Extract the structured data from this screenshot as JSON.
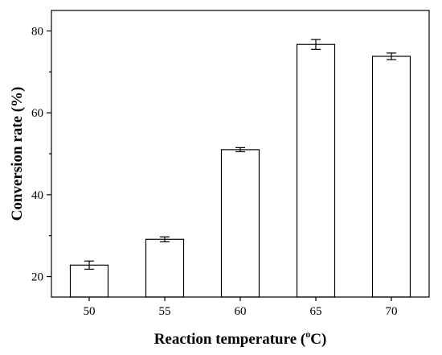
{
  "chart_data": {
    "type": "bar",
    "categories": [
      "50",
      "55",
      "60",
      "65",
      "70"
    ],
    "values": [
      22.8,
      29.1,
      51.0,
      76.7,
      73.8
    ],
    "errors": [
      1.0,
      0.6,
      0.5,
      1.2,
      0.8
    ],
    "xlabel": "Reaction temperature",
    "xlabel_unit_base": "C",
    "xlabel_unit_sup": "o",
    "xlabel_open": "(",
    "xlabel_close": ")",
    "ylabel": "Conversion rate (%)",
    "ylim": [
      15,
      85
    ],
    "yticks": [
      20,
      40,
      60,
      80
    ],
    "bar_fill": "#ffffff",
    "bar_stroke": "#000000",
    "grid": false
  }
}
